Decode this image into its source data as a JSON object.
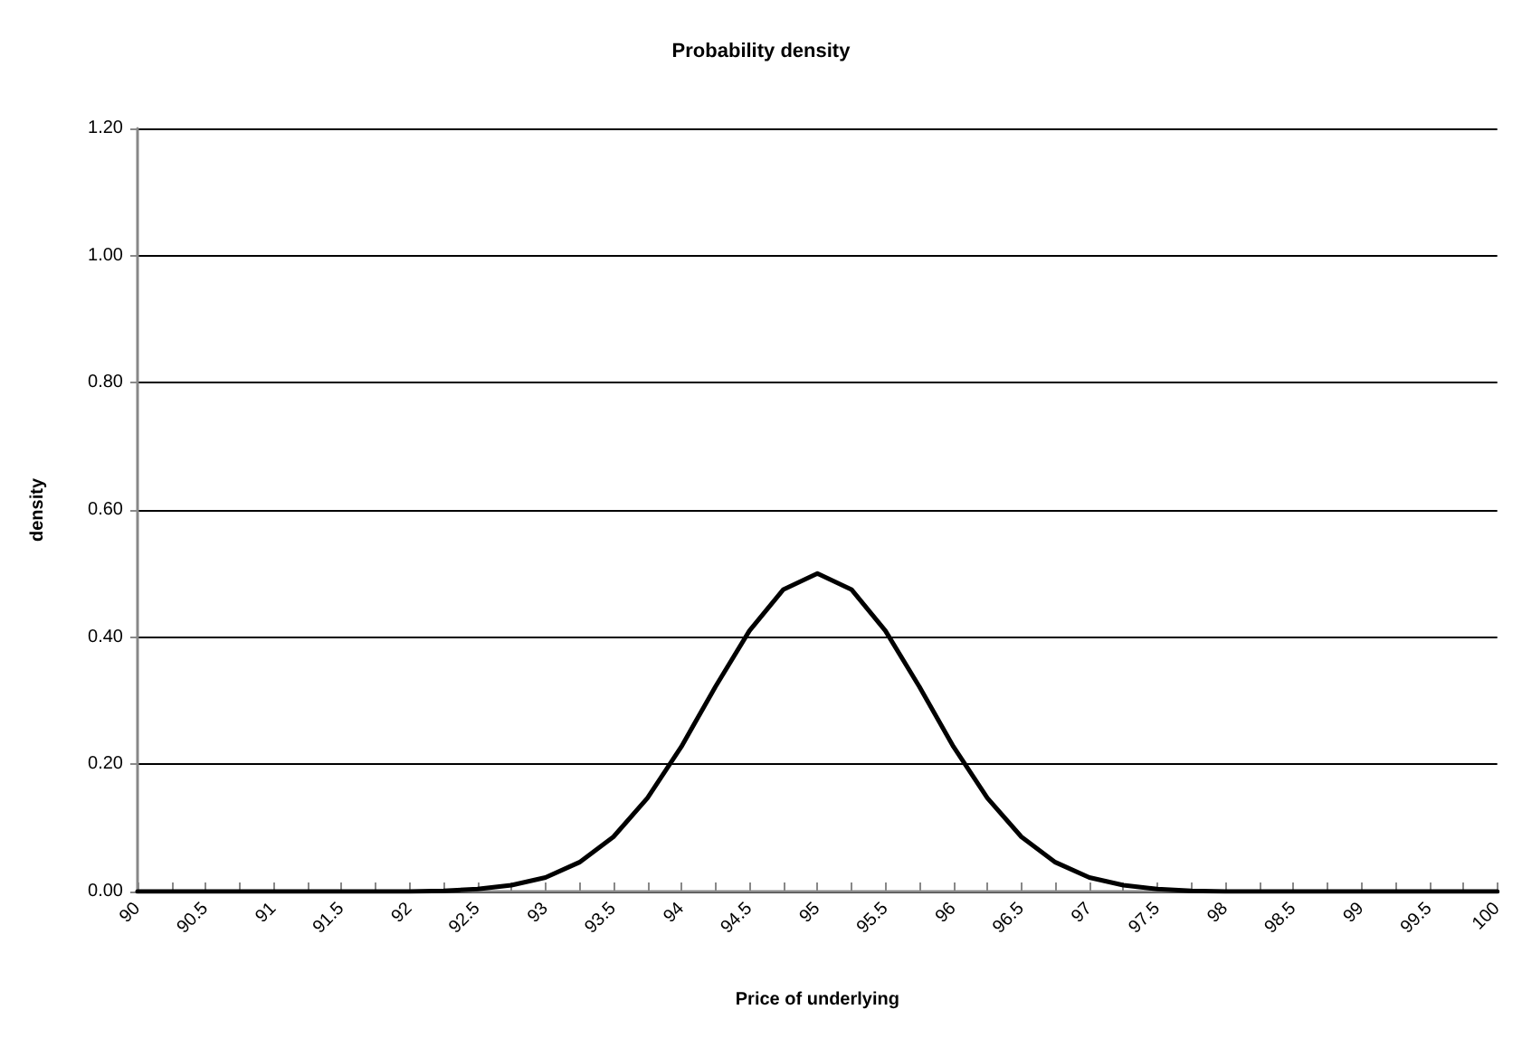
{
  "chart_data": {
    "type": "line",
    "title": "Probability density",
    "xlabel": "Price of underlying",
    "ylabel": "density",
    "x": [
      90,
      91,
      92,
      92.25,
      92.5,
      92.75,
      93,
      93.25,
      93.5,
      93.75,
      94,
      94.25,
      94.5,
      94.75,
      95,
      95.25,
      95.5,
      95.75,
      96,
      96.25,
      96.5,
      96.75,
      97,
      97.25,
      97.5,
      97.75,
      98,
      99,
      100
    ],
    "series": [
      {
        "color": "#000000",
        "values": [
          0,
          0,
          0,
          0.001,
          0.004,
          0.01,
          0.022,
          0.046,
          0.086,
          0.147,
          0.228,
          0.322,
          0.41,
          0.475,
          0.5,
          0.475,
          0.41,
          0.322,
          0.228,
          0.147,
          0.086,
          0.046,
          0.022,
          0.01,
          0.004,
          0.001,
          0,
          0,
          0
        ]
      }
    ],
    "xlim": [
      90,
      100
    ],
    "xticks": [
      90,
      {
        "value": 90.25,
        "label": null
      },
      90.5,
      {
        "value": 90.75,
        "label": null
      },
      91,
      {
        "value": 91.25,
        "label": null
      },
      91.5,
      {
        "value": 91.75,
        "label": null
      },
      92,
      {
        "value": 92.25,
        "label": null
      },
      92.5,
      {
        "value": 92.75,
        "label": null
      },
      93,
      {
        "value": 93.25,
        "label": null
      },
      93.5,
      {
        "value": 93.75,
        "label": null
      },
      94,
      {
        "value": 94.25,
        "label": null
      },
      94.5,
      {
        "value": 94.75,
        "label": null
      },
      95,
      {
        "value": 95.25,
        "label": null
      },
      95.5,
      {
        "value": 95.75,
        "label": null
      },
      96,
      {
        "value": 96.25,
        "label": null
      },
      96.5,
      {
        "value": 96.75,
        "label": null
      },
      97,
      {
        "value": 97.25,
        "label": null
      },
      97.5,
      {
        "value": 97.75,
        "label": null
      },
      98,
      {
        "value": 98.25,
        "label": null
      },
      98.5,
      {
        "value": 98.75,
        "label": null
      },
      99,
      {
        "value": 99.25,
        "label": null
      },
      99.5,
      {
        "value": 99.75,
        "label": null
      },
      100
    ],
    "ylim": [
      0,
      1.2
    ],
    "yticks": [
      {
        "value": 0,
        "label": "0.00"
      },
      {
        "value": 0.2,
        "label": "0.20"
      },
      {
        "value": 0.4,
        "label": "0.40"
      },
      {
        "value": 0.6,
        "label": "0.60"
      },
      {
        "value": 0.8,
        "label": "0.80"
      },
      {
        "value": 1,
        "label": "1.00"
      },
      {
        "value": 1.2,
        "label": "1.20"
      }
    ],
    "grid": "y",
    "marker": "none",
    "line_style": "solid"
  }
}
